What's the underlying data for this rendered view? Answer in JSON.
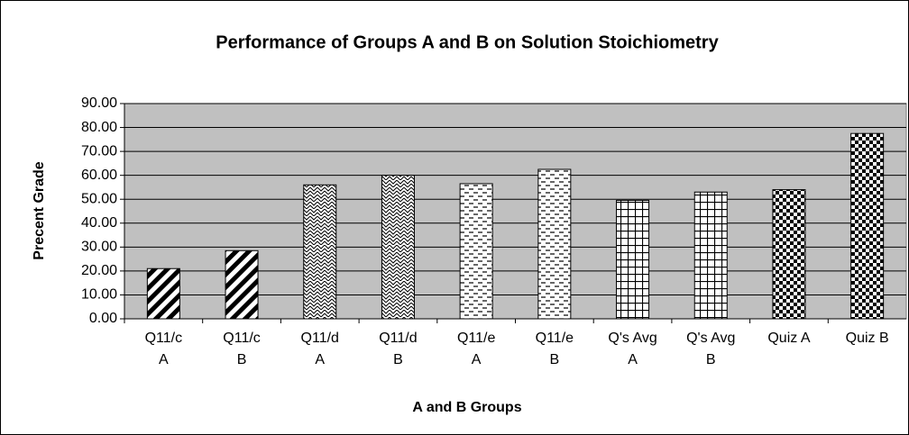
{
  "chart_data": {
    "type": "bar",
    "title": "Performance of Groups A and B on Solution Stoichiometry",
    "x_label": "A and B Groups",
    "y_label": "Precent Grade",
    "categories": [
      "Q11/c\nA",
      "Q11/c\nB",
      "Q11/d\nA",
      "Q11/d\nB",
      "Q11/e\nA",
      "Q11/e\nB",
      "Q's Avg\nA",
      "Q's Avg\nB",
      "Quiz A",
      "Quiz B"
    ],
    "values": [
      21,
      28.5,
      56,
      60,
      56.5,
      62.5,
      49.5,
      53,
      54,
      77.5
    ],
    "ylim": [
      0,
      90
    ],
    "yticks": [
      {
        "value": 0,
        "label": "0.00"
      },
      {
        "value": 10,
        "label": "10.00"
      },
      {
        "value": 20,
        "label": "20.00"
      },
      {
        "value": 30,
        "label": "30.00"
      },
      {
        "value": 40,
        "label": "40.00"
      },
      {
        "value": 50,
        "label": "50.00"
      },
      {
        "value": 60,
        "label": "60.00"
      },
      {
        "value": 70,
        "label": "70.00"
      },
      {
        "value": 80,
        "label": "80.00"
      },
      {
        "value": 90,
        "label": "90.00"
      }
    ],
    "grid": true
  }
}
